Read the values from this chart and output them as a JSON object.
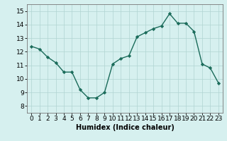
{
  "x": [
    0,
    1,
    2,
    3,
    4,
    5,
    6,
    7,
    8,
    9,
    10,
    11,
    12,
    13,
    14,
    15,
    16,
    17,
    18,
    19,
    20,
    21,
    22,
    23
  ],
  "y": [
    12.4,
    12.2,
    11.6,
    11.2,
    10.5,
    10.5,
    9.2,
    8.6,
    8.6,
    9.0,
    11.1,
    11.5,
    11.7,
    13.1,
    13.4,
    13.7,
    13.9,
    14.8,
    14.1,
    14.1,
    13.5,
    11.1,
    10.8,
    9.7
  ],
  "line_color": "#1a6b5a",
  "marker": "D",
  "marker_size": 2.2,
  "bg_color": "#d6f0ef",
  "grid_color": "#b0d4d2",
  "xlabel": "Humidex (Indice chaleur)",
  "xlabel_fontsize": 7,
  "tick_fontsize": 6.5,
  "xlim": [
    -0.5,
    23.5
  ],
  "ylim": [
    7.5,
    15.5
  ],
  "yticks": [
    8,
    9,
    10,
    11,
    12,
    13,
    14,
    15
  ],
  "xticks": [
    0,
    1,
    2,
    3,
    4,
    5,
    6,
    7,
    8,
    9,
    10,
    11,
    12,
    13,
    14,
    15,
    16,
    17,
    18,
    19,
    20,
    21,
    22,
    23
  ]
}
